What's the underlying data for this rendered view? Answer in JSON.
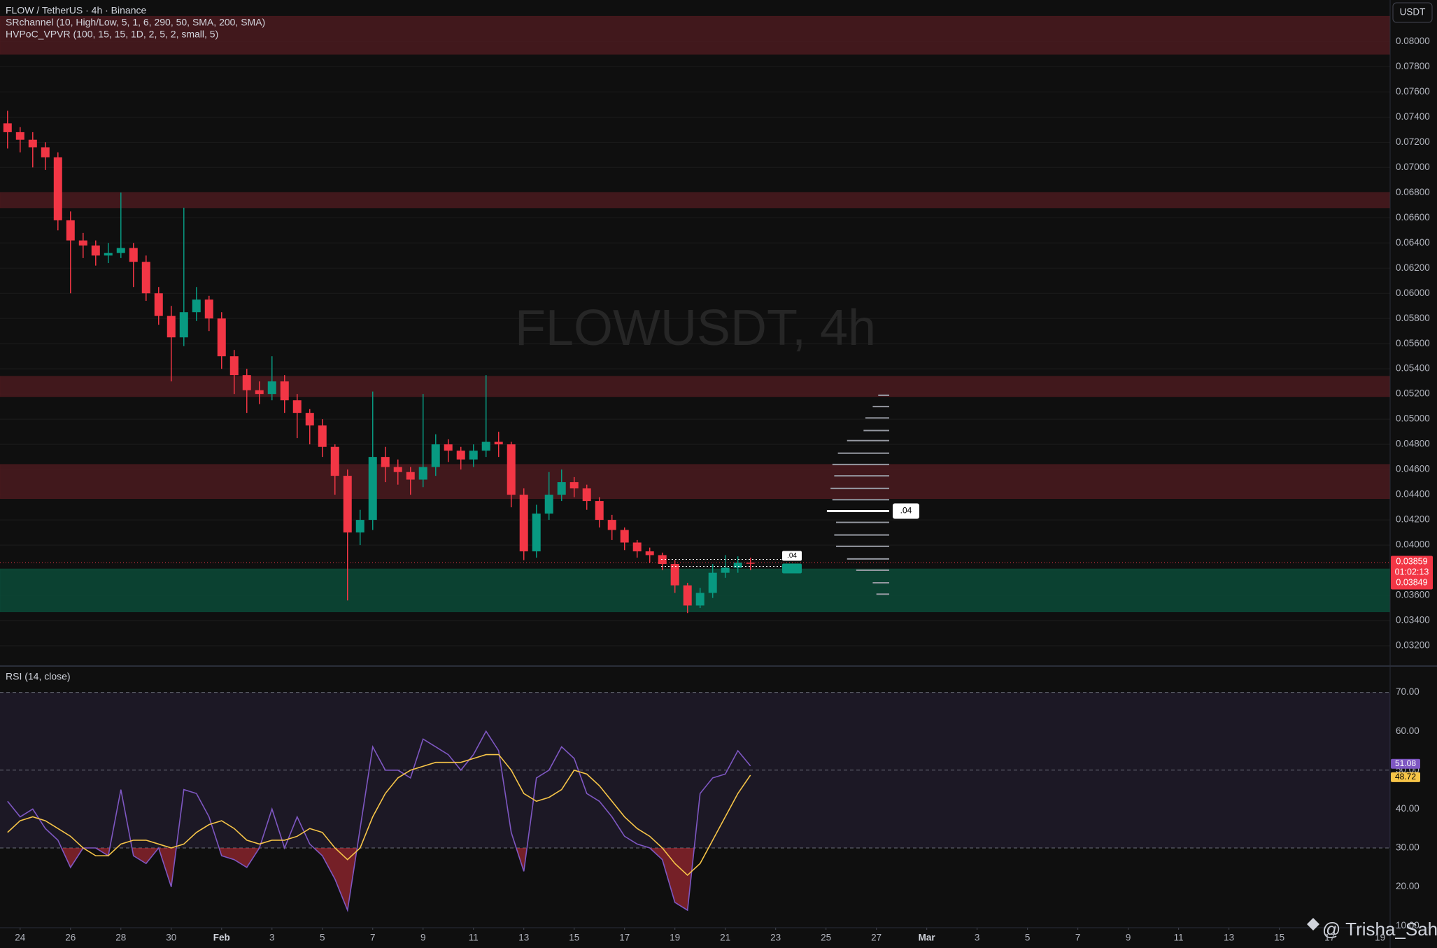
{
  "chart_data": [
    {
      "type": "candlestick",
      "title": "FLOW / TetherUS · 4h · Binance",
      "indicators": [
        "SRchannel (10, High/Low, 5, 1, 6, 290, 50, SMA, 200, SMA)",
        "HVPoC_VPVR (100, 15, 15, 1D, 2, 5, 2, small, 5)"
      ],
      "watermark": "FLOWUSDT, 4h",
      "currency": "USDT",
      "up_color": "#089981",
      "down_color": "#f23645",
      "x": [
        -0.5,
        0,
        0.5,
        1,
        1.5,
        2,
        2.5,
        3,
        3.5,
        4,
        4.5,
        5,
        5.5,
        6,
        6.5,
        7,
        7.5,
        8,
        8.5,
        9,
        9.5,
        10,
        10.5,
        11,
        11.5,
        12,
        12.5,
        13,
        13.5,
        14,
        14.5,
        15,
        15.5,
        16,
        16.5,
        17,
        17.5,
        18,
        18.5,
        19,
        19.5,
        20,
        20.5,
        21,
        21.5,
        22,
        22.5,
        23,
        23.5,
        24,
        24.5,
        25,
        25.5,
        26,
        26.5,
        27,
        27.5,
        28,
        28.5,
        29
      ],
      "open": [
        0.0735,
        0.0728,
        0.0722,
        0.0716,
        0.0708,
        0.0658,
        0.0642,
        0.0638,
        0.063,
        0.0632,
        0.0636,
        0.0625,
        0.06,
        0.0582,
        0.0565,
        0.0585,
        0.0595,
        0.058,
        0.055,
        0.0535,
        0.0523,
        0.052,
        0.053,
        0.0515,
        0.0505,
        0.0495,
        0.0478,
        0.0455,
        0.041,
        0.042,
        0.047,
        0.0462,
        0.0458,
        0.0452,
        0.0462,
        0.048,
        0.0475,
        0.0468,
        0.0475,
        0.0482,
        0.048,
        0.044,
        0.0395,
        0.0425,
        0.044,
        0.045,
        0.0445,
        0.0435,
        0.042,
        0.0412,
        0.0402,
        0.0395,
        0.0392,
        0.0385,
        0.0368,
        0.0352,
        0.0362,
        0.0378,
        0.0382,
        0.0386
      ],
      "high": [
        0.0745,
        0.0732,
        0.0728,
        0.072,
        0.0712,
        0.0665,
        0.0648,
        0.0642,
        0.064,
        0.068,
        0.064,
        0.063,
        0.0605,
        0.059,
        0.0668,
        0.0605,
        0.0598,
        0.0585,
        0.0555,
        0.054,
        0.053,
        0.055,
        0.0535,
        0.052,
        0.0508,
        0.05,
        0.048,
        0.046,
        0.0428,
        0.0522,
        0.0478,
        0.0468,
        0.0462,
        0.052,
        0.0488,
        0.0484,
        0.0478,
        0.048,
        0.0535,
        0.049,
        0.0482,
        0.0445,
        0.0432,
        0.0458,
        0.046,
        0.0454,
        0.0448,
        0.0438,
        0.0424,
        0.0414,
        0.0404,
        0.0398,
        0.0394,
        0.0388,
        0.037,
        0.0366,
        0.0385,
        0.0392,
        0.0391,
        0.039
      ],
      "low": [
        0.0715,
        0.0712,
        0.07,
        0.0698,
        0.065,
        0.06,
        0.0628,
        0.0622,
        0.0624,
        0.0628,
        0.0605,
        0.0594,
        0.0575,
        0.053,
        0.0558,
        0.0578,
        0.057,
        0.054,
        0.052,
        0.0505,
        0.0512,
        0.0515,
        0.0505,
        0.0485,
        0.048,
        0.047,
        0.044,
        0.0356,
        0.04,
        0.0412,
        0.045,
        0.0448,
        0.044,
        0.0446,
        0.0455,
        0.0466,
        0.046,
        0.0462,
        0.047,
        0.047,
        0.043,
        0.0388,
        0.039,
        0.042,
        0.0435,
        0.0438,
        0.0428,
        0.0414,
        0.0404,
        0.0396,
        0.039,
        0.0386,
        0.038,
        0.0362,
        0.0346,
        0.035,
        0.0358,
        0.0374,
        0.0378,
        0.038
      ],
      "close": [
        0.0728,
        0.0722,
        0.0716,
        0.0708,
        0.0658,
        0.0642,
        0.0638,
        0.063,
        0.0632,
        0.0636,
        0.0625,
        0.06,
        0.0582,
        0.0565,
        0.0585,
        0.0595,
        0.058,
        0.055,
        0.0535,
        0.0523,
        0.052,
        0.053,
        0.0515,
        0.0505,
        0.0495,
        0.0478,
        0.0455,
        0.041,
        0.042,
        0.047,
        0.0462,
        0.0458,
        0.0452,
        0.0462,
        0.048,
        0.0475,
        0.0468,
        0.0475,
        0.0482,
        0.048,
        0.044,
        0.0395,
        0.0425,
        0.044,
        0.045,
        0.0445,
        0.0435,
        0.042,
        0.0412,
        0.0402,
        0.0395,
        0.0392,
        0.0385,
        0.0368,
        0.0352,
        0.0362,
        0.0378,
        0.0382,
        0.0386,
        0.03859
      ],
      "countdown": "01:02:13",
      "second_price_label": "0.03849",
      "zones": [
        {
          "low": 0.079,
          "high": 0.082,
          "color": "#4a1a1e"
        },
        {
          "low": 0.0668,
          "high": 0.068,
          "color": "#4a1a1e"
        },
        {
          "low": 0.0518,
          "high": 0.0534,
          "color": "#4a1a1e"
        },
        {
          "low": 0.0437,
          "high": 0.0464,
          "color": "#4a1a1e"
        },
        {
          "low": 0.0347,
          "high": 0.0381,
          "color": "#0b4a37"
        }
      ],
      "volume_profile": {
        "prices": [
          0.0361,
          0.037,
          0.038,
          0.0389,
          0.0399,
          0.0408,
          0.0418,
          0.0427,
          0.0436,
          0.0445,
          0.0455,
          0.0464,
          0.0473,
          0.0483,
          0.0491,
          0.0501,
          0.051,
          0.0519
        ],
        "volumes": [
          14,
          18,
          36,
          46,
          58,
          60,
          58,
          68,
          62,
          64,
          60,
          62,
          56,
          46,
          28,
          26,
          18,
          12
        ],
        "poc_label": ".04",
        "price_tag": ".04"
      },
      "xlim": [
        -0.8,
        54.4
      ],
      "ylim": [
        0.0305,
        0.0833
      ],
      "yticks": [
        {
          "value": 0.032,
          "label": "0.03200"
        },
        {
          "value": 0.034,
          "label": "0.03400"
        },
        {
          "value": 0.036,
          "label": "0.03600"
        },
        {
          "value": 0.038,
          "label": "0.03800"
        },
        {
          "value": 0.04,
          "label": "0.04000"
        },
        {
          "value": 0.042,
          "label": "0.04200"
        },
        {
          "value": 0.044,
          "label": "0.04400"
        },
        {
          "value": 0.046,
          "label": "0.04600"
        },
        {
          "value": 0.048,
          "label": "0.04800"
        },
        {
          "value": 0.05,
          "label": "0.05000"
        },
        {
          "value": 0.052,
          "label": "0.05200"
        },
        {
          "value": 0.054,
          "label": "0.05400"
        },
        {
          "value": 0.056,
          "label": "0.05600"
        },
        {
          "value": 0.058,
          "label": "0.05800"
        },
        {
          "value": 0.06,
          "label": "0.06000"
        },
        {
          "value": 0.062,
          "label": "0.06200"
        },
        {
          "value": 0.064,
          "label": "0.06400"
        },
        {
          "value": 0.066,
          "label": "0.06600"
        },
        {
          "value": 0.068,
          "label": "0.06800"
        },
        {
          "value": 0.07,
          "label": "0.07000"
        },
        {
          "value": 0.072,
          "label": "0.07200"
        },
        {
          "value": 0.074,
          "label": "0.07400"
        },
        {
          "value": 0.076,
          "label": "0.07600"
        },
        {
          "value": 0.078,
          "label": "0.07800"
        },
        {
          "value": 0.08,
          "label": "0.08000"
        }
      ],
      "grid": true
    },
    {
      "type": "line",
      "title": "RSI (14, close)",
      "x": [
        -0.5,
        0,
        0.5,
        1,
        1.5,
        2,
        2.5,
        3,
        3.5,
        4,
        4.5,
        5,
        5.5,
        6,
        6.5,
        7,
        7.5,
        8,
        8.5,
        9,
        9.5,
        10,
        10.5,
        11,
        11.5,
        12,
        12.5,
        13,
        13.5,
        14,
        14.5,
        15,
        15.5,
        16,
        16.5,
        17,
        17.5,
        18,
        18.5,
        19,
        19.5,
        20,
        20.5,
        21,
        21.5,
        22,
        22.5,
        23,
        23.5,
        24,
        24.5,
        25,
        25.5,
        26,
        26.5,
        27,
        27.5,
        28,
        28.5,
        29
      ],
      "series": [
        {
          "name": "RSI",
          "color": "#7e57c2",
          "values": [
            42,
            38,
            40,
            35,
            32,
            25,
            30,
            30,
            28,
            45,
            28,
            26,
            30,
            20,
            45,
            44,
            38,
            28,
            27,
            25,
            30,
            40,
            30,
            38,
            31,
            28,
            22,
            14,
            35,
            56,
            50,
            50,
            48,
            58,
            56,
            54,
            50,
            54,
            60,
            55,
            34,
            24,
            48,
            50,
            56,
            53,
            44,
            42,
            38,
            33,
            31,
            30,
            27,
            16,
            14,
            44,
            48,
            49,
            55,
            51.08
          ]
        },
        {
          "name": "RSI MA",
          "color": "#f7c548",
          "values": [
            34,
            37,
            38,
            37,
            35,
            33,
            30,
            28,
            28,
            31,
            32,
            32,
            31,
            30,
            31,
            34,
            36,
            37,
            35,
            32,
            31,
            32,
            32,
            33,
            35,
            34,
            30,
            27,
            30,
            38,
            44,
            48,
            50,
            51,
            52,
            52,
            52,
            53,
            54,
            54,
            50,
            44,
            42,
            43,
            45,
            50,
            49,
            46,
            42,
            38,
            35,
            33,
            30,
            26,
            23,
            26,
            32,
            38,
            44,
            48.72
          ]
        }
      ],
      "levels": [
        70,
        50,
        30
      ],
      "xlim": [
        -0.8,
        54.4
      ],
      "xticks": [
        {
          "value": 0,
          "label": "24"
        },
        {
          "value": 2,
          "label": "26"
        },
        {
          "value": 4,
          "label": "28"
        },
        {
          "value": 6,
          "label": "30"
        },
        {
          "value": 8,
          "label": "Feb"
        },
        {
          "value": 10,
          "label": "3"
        },
        {
          "value": 12,
          "label": "5"
        },
        {
          "value": 14,
          "label": "7"
        },
        {
          "value": 16,
          "label": "9"
        },
        {
          "value": 18,
          "label": "11"
        },
        {
          "value": 20,
          "label": "13"
        },
        {
          "value": 22,
          "label": "15"
        },
        {
          "value": 24,
          "label": "17"
        },
        {
          "value": 26,
          "label": "19"
        },
        {
          "value": 28,
          "label": "21"
        },
        {
          "value": 30,
          "label": "23"
        },
        {
          "value": 32,
          "label": "25"
        },
        {
          "value": 34,
          "label": "27"
        },
        {
          "value": 36,
          "label": "Mar"
        },
        {
          "value": 38,
          "label": "3"
        },
        {
          "value": 40,
          "label": "5"
        },
        {
          "value": 42,
          "label": "7"
        },
        {
          "value": 44,
          "label": "9"
        },
        {
          "value": 46,
          "label": "11"
        },
        {
          "value": 48,
          "label": "13"
        },
        {
          "value": 50,
          "label": "15"
        },
        {
          "value": 52,
          "label": "17"
        },
        {
          "value": 54,
          "label": "19"
        }
      ],
      "ylim": [
        9.5,
        76.4
      ],
      "yticks": [
        {
          "value": 10,
          "label": "10.00"
        },
        {
          "value": 20,
          "label": "20.00"
        },
        {
          "value": 30,
          "label": "30.00"
        },
        {
          "value": 40,
          "label": "40.00"
        },
        {
          "value": 50,
          "label": "50.00"
        },
        {
          "value": 60,
          "label": "60.00"
        },
        {
          "value": 70,
          "label": "70.00"
        }
      ]
    }
  ],
  "credit": "@ Trisha_Saha"
}
